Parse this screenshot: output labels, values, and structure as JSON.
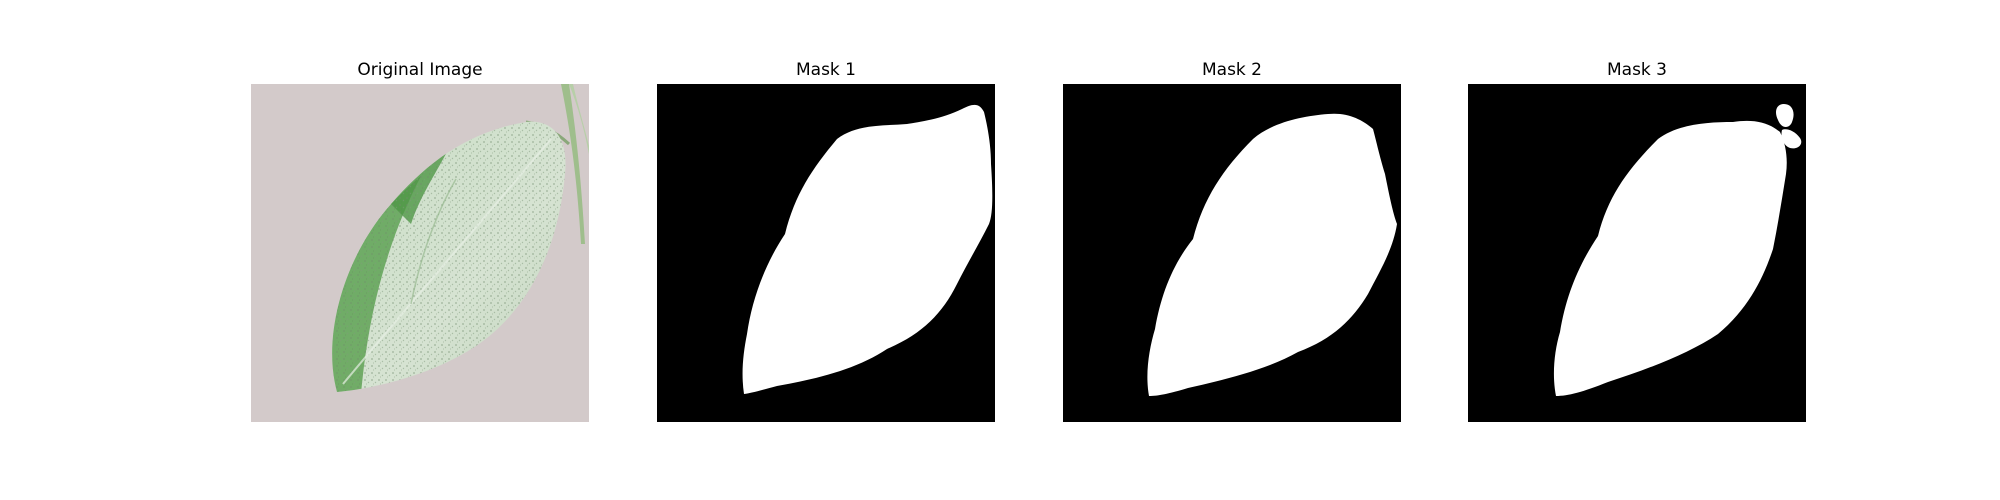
{
  "panels": [
    {
      "title": "Original Image",
      "kind": "photo"
    },
    {
      "title": "Mask 1",
      "kind": "mask"
    },
    {
      "title": "Mask 2",
      "kind": "mask"
    },
    {
      "title": "Mask 3",
      "kind": "mask"
    }
  ],
  "colors": {
    "photo_background": "#d2c9c9",
    "leaf_base": "#c4d6c0",
    "leaf_dark_green": "#4e9a46",
    "leaf_speckle": "#7a8f78",
    "stem": "#9fbe8c",
    "mask_background": "#000000",
    "mask_foreground": "#ffffff"
  }
}
